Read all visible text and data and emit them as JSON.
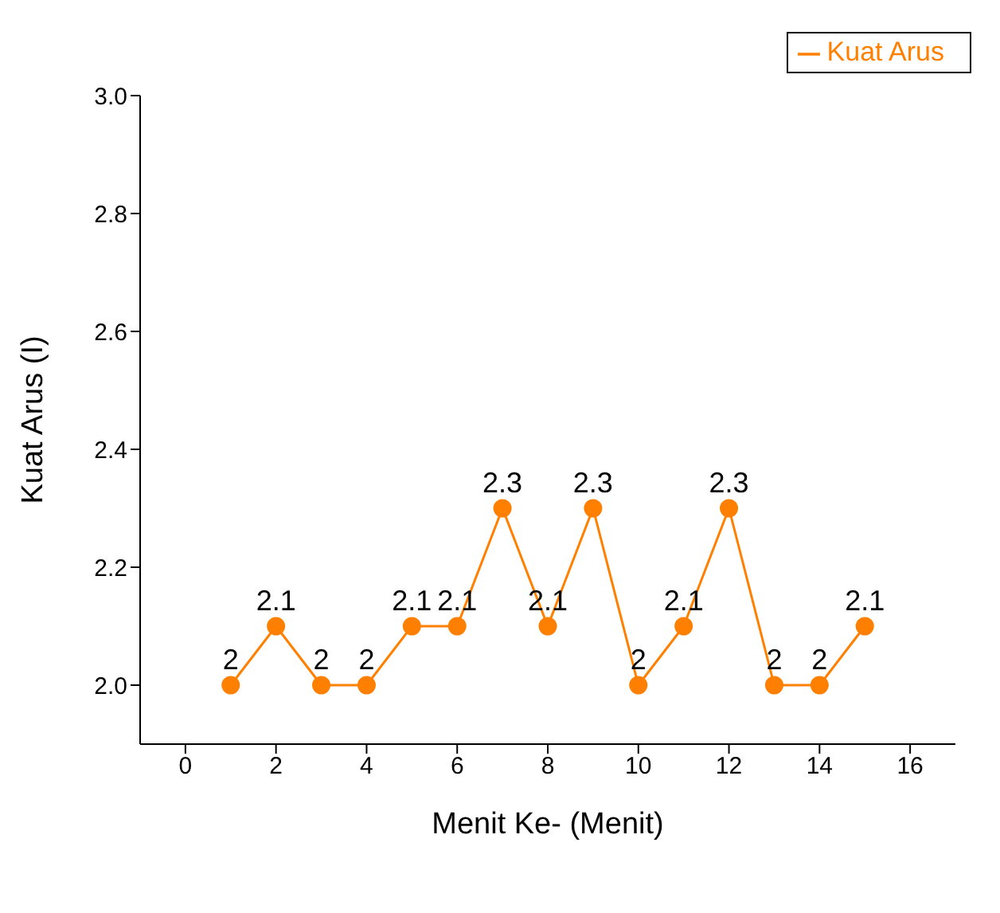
{
  "chart_data": {
    "type": "line",
    "xlabel": "Menit Ke- (Menit)",
    "ylabel": "Kuat Arus (I)",
    "x": [
      1,
      2,
      3,
      4,
      5,
      6,
      7,
      8,
      9,
      10,
      11,
      12,
      13,
      14,
      15
    ],
    "series": [
      {
        "name": "Kuat Arus",
        "color": "#ff8000",
        "values": [
          2,
          2.1,
          2,
          2,
          2.1,
          2.1,
          2.3,
          2.1,
          2.3,
          2,
          2.1,
          2.3,
          2,
          2,
          2.1
        ]
      }
    ],
    "xlim": [
      -1,
      17
    ],
    "xticks": [
      0,
      2,
      4,
      6,
      8,
      10,
      12,
      14,
      16
    ],
    "ylim": [
      1.9,
      3.0
    ],
    "yticks": [
      {
        "value": 2,
        "label": "2.0"
      },
      {
        "value": 2.2,
        "label": "2.2"
      },
      {
        "value": 2.4,
        "label": "2.4"
      },
      {
        "value": 2.6,
        "label": "2.6"
      },
      {
        "value": 2.8,
        "label": "2.8"
      },
      {
        "value": 3,
        "label": "3.0"
      }
    ],
    "marker": "circle",
    "line_style": "solid",
    "data_labels": true,
    "grid": false,
    "legend": "top right"
  }
}
